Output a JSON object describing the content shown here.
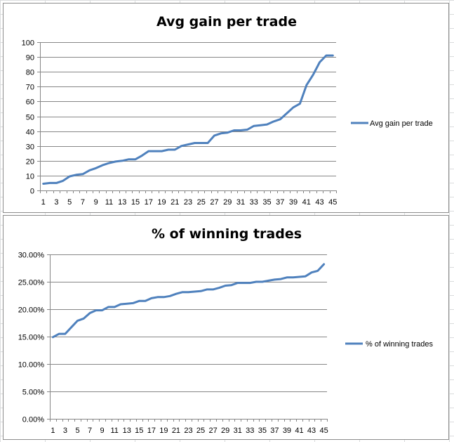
{
  "colors": {
    "series": "#4F81BD",
    "grid": "#868686",
    "frame": "#8c8c8c",
    "sheet_grid": "#dadcdd"
  },
  "chart_data": [
    {
      "type": "line",
      "title": "Avg gain per trade",
      "xlabel": "",
      "ylabel": "",
      "x": [
        1,
        2,
        3,
        4,
        5,
        6,
        7,
        8,
        9,
        10,
        11,
        12,
        13,
        14,
        15,
        16,
        17,
        18,
        19,
        20,
        21,
        22,
        23,
        24,
        25,
        26,
        27,
        28,
        29,
        30,
        31,
        32,
        33,
        34,
        35,
        36,
        37,
        38,
        39,
        40,
        41,
        42,
        43,
        44,
        45
      ],
      "x_tick_labels": [
        "1",
        "3",
        "5",
        "7",
        "9",
        "11",
        "13",
        "15",
        "17",
        "19",
        "21",
        "23",
        "25",
        "27",
        "29",
        "31",
        "33",
        "35",
        "37",
        "39",
        "41",
        "43",
        "45"
      ],
      "ylim": [
        0,
        100
      ],
      "y_ticks": [
        0,
        10,
        20,
        30,
        40,
        50,
        60,
        70,
        80,
        90,
        100
      ],
      "y_tick_labels": [
        "0",
        "10",
        "20",
        "30",
        "40",
        "50",
        "60",
        "70",
        "80",
        "90",
        "100"
      ],
      "grid": true,
      "legend_position": "right",
      "series": [
        {
          "name": "Avg gain  per trade",
          "values": [
            4.5,
            5,
            5,
            6.5,
            9.5,
            10.5,
            11,
            13.5,
            15,
            17,
            18.5,
            19.5,
            20,
            21,
            21,
            23.5,
            26.5,
            26.5,
            26.5,
            27.5,
            27.5,
            30,
            31,
            32,
            32,
            32,
            37,
            38.5,
            39,
            40.5,
            40.5,
            41,
            43.5,
            44,
            44.5,
            46.5,
            48,
            52,
            56,
            58.5,
            71,
            78,
            86.5,
            91,
            91
          ]
        }
      ]
    },
    {
      "type": "line",
      "title": "% of winning trades",
      "xlabel": "",
      "ylabel": "",
      "x": [
        1,
        2,
        3,
        4,
        5,
        6,
        7,
        8,
        9,
        10,
        11,
        12,
        13,
        14,
        15,
        16,
        17,
        18,
        19,
        20,
        21,
        22,
        23,
        24,
        25,
        26,
        27,
        28,
        29,
        30,
        31,
        32,
        33,
        34,
        35,
        36,
        37,
        38,
        39,
        40,
        41,
        42,
        43,
        44,
        45
      ],
      "x_tick_labels": [
        "1",
        "3",
        "5",
        "7",
        "9",
        "11",
        "13",
        "15",
        "17",
        "19",
        "21",
        "23",
        "25",
        "27",
        "29",
        "31",
        "33",
        "35",
        "37",
        "39",
        "41",
        "43",
        "45"
      ],
      "ylim": [
        0,
        30
      ],
      "y_ticks": [
        0,
        5,
        10,
        15,
        20,
        25,
        30
      ],
      "y_tick_labels": [
        "0.00%",
        "5.00%",
        "10.00%",
        "15.00%",
        "20.00%",
        "25.00%",
        "30.00%"
      ],
      "grid": true,
      "legend_position": "right",
      "series": [
        {
          "name": "% of winning trades",
          "values": [
            14.9,
            15.5,
            15.5,
            16.7,
            17.9,
            18.3,
            19.3,
            19.8,
            19.8,
            20.4,
            20.4,
            20.9,
            21.0,
            21.1,
            21.5,
            21.5,
            22.0,
            22.2,
            22.2,
            22.4,
            22.8,
            23.1,
            23.1,
            23.2,
            23.3,
            23.6,
            23.6,
            23.9,
            24.3,
            24.4,
            24.8,
            24.8,
            24.8,
            25.0,
            25.0,
            25.2,
            25.4,
            25.5,
            25.8,
            25.8,
            25.9,
            26.0,
            26.7,
            27.0,
            28.2
          ]
        }
      ]
    }
  ]
}
